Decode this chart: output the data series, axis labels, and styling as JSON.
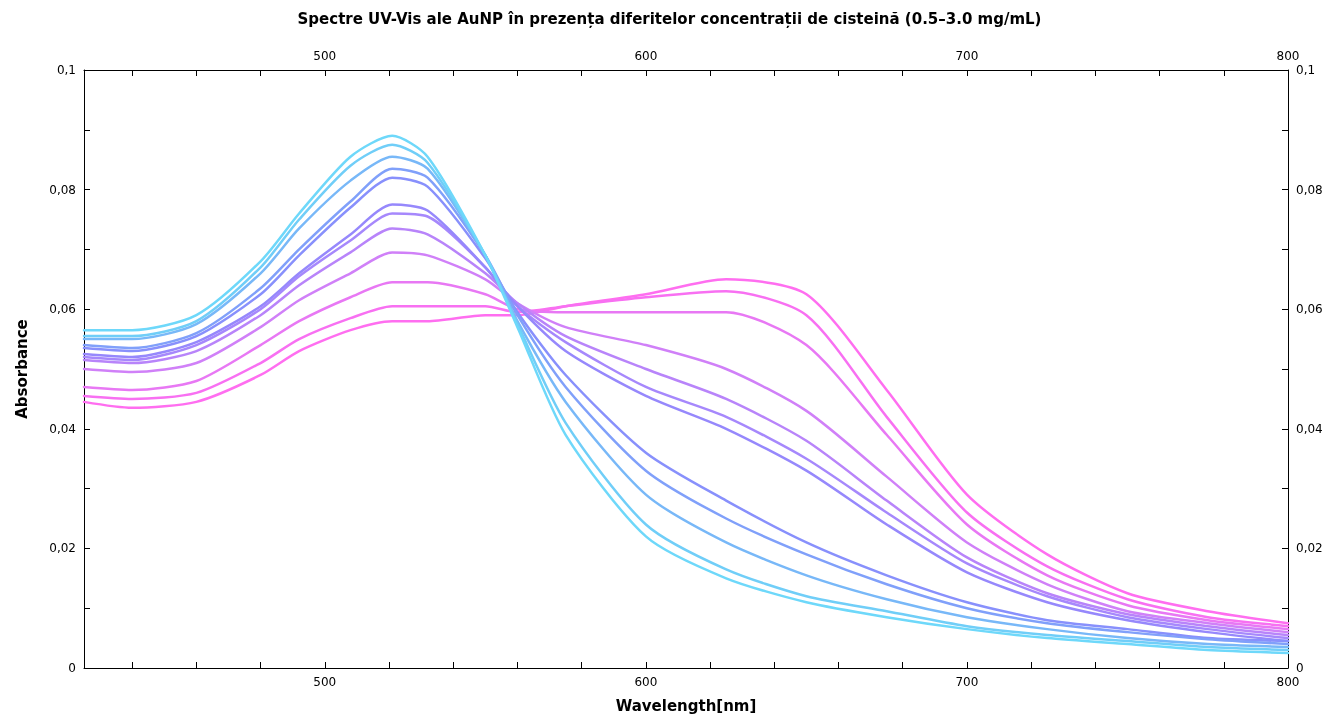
{
  "chart_data": {
    "type": "line",
    "title": "Spectre UV-Vis ale AuNP în prezența diferitelor concentrații de cisteină (0.5–3.0 mg/mL)",
    "xlabel": "Wavelength[nm]",
    "ylabel": "Absorbance",
    "x": [
      425,
      440,
      460,
      480,
      492,
      508,
      521,
      532,
      550,
      560,
      575,
      600,
      625,
      650,
      675,
      700,
      725,
      750,
      775,
      800
    ],
    "xlim": [
      425,
      800
    ],
    "xticks": [
      {
        "value": 440,
        "label": null
      },
      {
        "value": 460,
        "label": null
      },
      {
        "value": 480,
        "label": null
      },
      500,
      {
        "value": 520,
        "label": null
      },
      {
        "value": 540,
        "label": null
      },
      {
        "value": 560,
        "label": null
      },
      {
        "value": 580,
        "label": null
      },
      600,
      {
        "value": 620,
        "label": null
      },
      {
        "value": 640,
        "label": null
      },
      {
        "value": 660,
        "label": null
      },
      {
        "value": 680,
        "label": null
      },
      700,
      {
        "value": 720,
        "label": null
      },
      {
        "value": 740,
        "label": null
      },
      {
        "value": 760,
        "label": null
      },
      {
        "value": 780,
        "label": null
      },
      800
    ],
    "x2lim": [
      425,
      800
    ],
    "x2ticks": [
      {
        "value": 440,
        "label": null
      },
      {
        "value": 460,
        "label": null
      },
      {
        "value": 480,
        "label": null
      },
      500,
      {
        "value": 520,
        "label": null
      },
      {
        "value": 540,
        "label": null
      },
      {
        "value": 560,
        "label": null
      },
      {
        "value": 580,
        "label": null
      },
      600,
      {
        "value": 620,
        "label": null
      },
      {
        "value": 640,
        "label": null
      },
      {
        "value": 660,
        "label": null
      },
      {
        "value": 680,
        "label": null
      },
      700,
      {
        "value": 720,
        "label": null
      },
      {
        "value": 740,
        "label": null
      },
      {
        "value": 760,
        "label": null
      },
      {
        "value": 780,
        "label": null
      },
      800
    ],
    "ylim": [
      0,
      0.1
    ],
    "yticks": [
      0,
      {
        "value": 0.01,
        "label": null
      },
      {
        "value": 0.02,
        "label": "0,02"
      },
      {
        "value": 0.03,
        "label": null
      },
      {
        "value": 0.04,
        "label": "0,04"
      },
      {
        "value": 0.05,
        "label": null
      },
      {
        "value": 0.06,
        "label": "0,06"
      },
      {
        "value": 0.07,
        "label": null
      },
      {
        "value": 0.08,
        "label": "0,08"
      },
      {
        "value": 0.09,
        "label": null
      },
      {
        "value": 0.1,
        "label": "0,1"
      }
    ],
    "y2lim": [
      0,
      0.1
    ],
    "y2ticks": [
      0,
      {
        "value": 0.01,
        "label": null
      },
      {
        "value": 0.02,
        "label": "0,02"
      },
      {
        "value": 0.03,
        "label": null
      },
      {
        "value": 0.04,
        "label": "0,04"
      },
      {
        "value": 0.05,
        "label": null
      },
      {
        "value": 0.06,
        "label": "0,06"
      },
      {
        "value": 0.07,
        "label": null
      },
      {
        "value": 0.08,
        "label": "0,08"
      },
      {
        "value": 0.09,
        "label": null
      },
      {
        "value": 0.1,
        "label": "0,1"
      }
    ],
    "grid": false,
    "marker": "none",
    "line_style": "solid",
    "series": [
      {
        "color": "#ff6ef0",
        "values": [
          0.0445,
          0.0435,
          0.0445,
          0.049,
          0.053,
          0.0565,
          0.058,
          0.058,
          0.059,
          0.059,
          0.0605,
          0.0625,
          0.065,
          0.0625,
          0.0465,
          0.029,
          0.019,
          0.0125,
          0.0095,
          0.0075
        ]
      },
      {
        "color": "#f870f2",
        "values": [
          0.0455,
          0.045,
          0.046,
          0.051,
          0.055,
          0.0585,
          0.0605,
          0.0605,
          0.0605,
          0.0595,
          0.0605,
          0.062,
          0.063,
          0.059,
          0.042,
          0.026,
          0.017,
          0.0115,
          0.0085,
          0.007
        ]
      },
      {
        "color": "#e878f4",
        "values": [
          0.047,
          0.0465,
          0.048,
          0.054,
          0.058,
          0.062,
          0.0645,
          0.0645,
          0.0625,
          0.06,
          0.0595,
          0.0595,
          0.0595,
          0.054,
          0.039,
          0.024,
          0.0155,
          0.0105,
          0.008,
          0.0065
        ]
      },
      {
        "color": "#d080f8",
        "values": [
          0.05,
          0.0495,
          0.051,
          0.057,
          0.0615,
          0.066,
          0.0695,
          0.069,
          0.065,
          0.061,
          0.057,
          0.054,
          0.05,
          0.043,
          0.032,
          0.021,
          0.014,
          0.0095,
          0.0075,
          0.006
        ]
      },
      {
        "color": "#b884fa",
        "values": [
          0.0515,
          0.051,
          0.053,
          0.059,
          0.064,
          0.0695,
          0.0735,
          0.0725,
          0.066,
          0.061,
          0.0555,
          0.05,
          0.045,
          0.038,
          0.028,
          0.0185,
          0.0125,
          0.009,
          0.007,
          0.0055
        ]
      },
      {
        "color": "#a688fc",
        "values": [
          0.052,
          0.0515,
          0.054,
          0.06,
          0.0655,
          0.0715,
          0.076,
          0.0755,
          0.067,
          0.0605,
          0.0545,
          0.047,
          0.042,
          0.035,
          0.026,
          0.0175,
          0.012,
          0.0085,
          0.0065,
          0.005
        ]
      },
      {
        "color": "#9688fc",
        "values": [
          0.0525,
          0.052,
          0.0545,
          0.0605,
          0.066,
          0.0725,
          0.0775,
          0.0765,
          0.067,
          0.0605,
          0.053,
          0.0455,
          0.04,
          0.033,
          0.024,
          0.016,
          0.011,
          0.008,
          0.006,
          0.0045
        ]
      },
      {
        "color": "#8890fc",
        "values": [
          0.0535,
          0.053,
          0.0555,
          0.0625,
          0.069,
          0.077,
          0.082,
          0.0805,
          0.0685,
          0.0595,
          0.049,
          0.036,
          0.028,
          0.021,
          0.0155,
          0.011,
          0.008,
          0.0065,
          0.005,
          0.0045
        ]
      },
      {
        "color": "#80a0fa",
        "values": [
          0.054,
          0.0535,
          0.056,
          0.0635,
          0.07,
          0.078,
          0.0835,
          0.082,
          0.069,
          0.059,
          0.047,
          0.033,
          0.025,
          0.019,
          0.014,
          0.01,
          0.0075,
          0.006,
          0.0048,
          0.004
        ]
      },
      {
        "color": "#78b8f8",
        "values": [
          0.055,
          0.055,
          0.0575,
          0.066,
          0.0735,
          0.0815,
          0.0855,
          0.0835,
          0.069,
          0.058,
          0.0445,
          0.029,
          0.021,
          0.0155,
          0.0115,
          0.0085,
          0.0065,
          0.005,
          0.004,
          0.0035
        ]
      },
      {
        "color": "#70cef8",
        "values": [
          0.0555,
          0.0555,
          0.058,
          0.067,
          0.075,
          0.084,
          0.0875,
          0.0845,
          0.069,
          0.0575,
          0.041,
          0.024,
          0.0165,
          0.012,
          0.0095,
          0.007,
          0.0055,
          0.0045,
          0.0035,
          0.003
        ]
      },
      {
        "color": "#6ed8fa",
        "values": [
          0.0565,
          0.0565,
          0.059,
          0.068,
          0.076,
          0.0855,
          0.089,
          0.0855,
          0.069,
          0.057,
          0.039,
          0.022,
          0.015,
          0.011,
          0.0085,
          0.0065,
          0.005,
          0.004,
          0.003,
          0.0025
        ]
      }
    ]
  }
}
